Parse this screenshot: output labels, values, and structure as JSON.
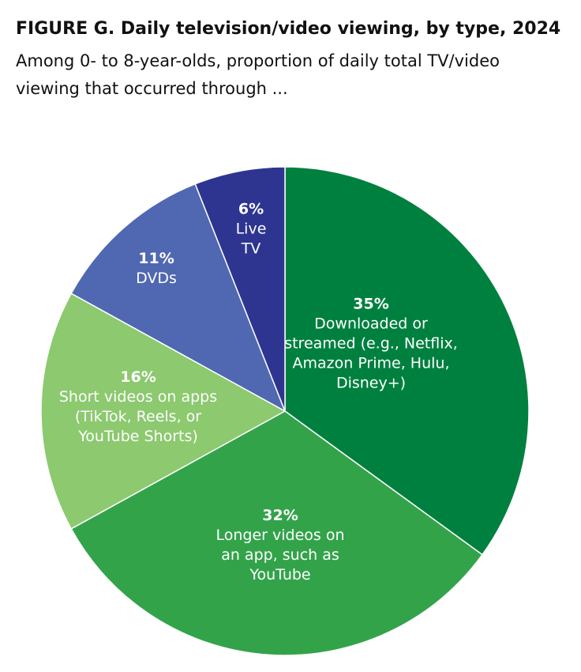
{
  "chart_data": {
    "type": "pie",
    "title": "FIGURE G. Daily television/video viewing, by type, 2024",
    "subtitle": "Among 0- to 8-year-olds, proportion of daily total TV/video viewing that occurred through ...",
    "categories": [
      "Downloaded or streamed (e.g., Netflix, Amazon Prime, Hulu, Disney+)",
      "Longer videos on an app, such as YouTube",
      "Short videos on apps (TikTok, Reels, or YouTube Shorts)",
      "DVDs",
      "Live TV"
    ],
    "values": [
      35,
      32,
      16,
      11,
      6
    ],
    "value_labels": [
      "35%",
      "32%",
      "16%",
      "11%",
      "6%"
    ],
    "colors": [
      "#00803f",
      "#33a34a",
      "#8cc96f",
      "#5068b1",
      "#2e3591"
    ]
  }
}
